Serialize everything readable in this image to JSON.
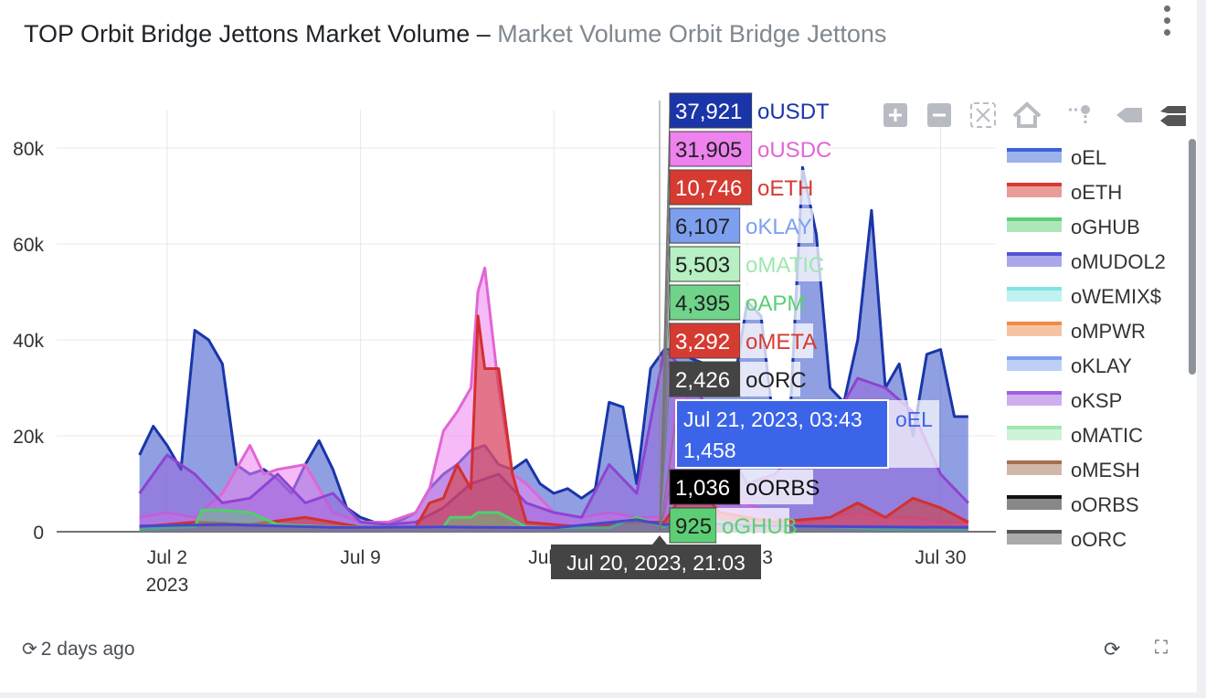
{
  "header": {
    "title_main": "TOP Orbit Bridge Jettons Market Volume",
    "title_sep": " – ",
    "title_sub": "Market Volume Orbit Bridge Jettons",
    "menu_icon": "kebab-vertical-icon"
  },
  "footer": {
    "refresh_icon": "refresh-icon",
    "updated": "2 days ago",
    "reload_icon": "reload-icon",
    "expand_icon": "expand-icon"
  },
  "modebar": [
    "zoom-in-icon",
    "zoom-out-icon",
    "autoscale-icon",
    "reset-axes-icon",
    "spike-lines-icon",
    "hover-closest-icon",
    "hover-compare-icon"
  ],
  "chart_data": {
    "type": "area",
    "y_ticks": [
      "0",
      "20k",
      "40k",
      "60k",
      "80k"
    ],
    "ylim": [
      0,
      88000
    ],
    "x_ticks": [
      {
        "date": "2023-07-02",
        "label": "Jul 2",
        "sublabel": "2023"
      },
      {
        "date": "2023-07-09",
        "label": "Jul 9",
        "sublabel": ""
      },
      {
        "date": "2023-07-16",
        "label": "Jul 16",
        "sublabel": ""
      },
      {
        "date": "2023-07-23",
        "label": "Jul 23",
        "sublabel": ""
      },
      {
        "date": "2023-07-30",
        "label": "Jul 30",
        "sublabel": ""
      }
    ],
    "xlim": [
      "2023-06-28",
      "2023-08-01"
    ],
    "grid": true,
    "legend_position": "right",
    "legend": [
      {
        "name": "oEL",
        "color": "#3b64d9"
      },
      {
        "name": "oETH",
        "color": "#d63b32"
      },
      {
        "name": "oGHUB",
        "color": "#5ccf74"
      },
      {
        "name": "oMUDOL2",
        "color": "#5552d6"
      },
      {
        "name": "oWEMIX$",
        "color": "#7fe6e3"
      },
      {
        "name": "oMPWR",
        "color": "#ee8a48"
      },
      {
        "name": "oKLAY",
        "color": "#7d9ff0"
      },
      {
        "name": "oKSP",
        "color": "#a05ee0"
      },
      {
        "name": "oMATIC",
        "color": "#9ee8b0"
      },
      {
        "name": "oMESH",
        "color": "#a4704f"
      },
      {
        "name": "oORBS",
        "color": "#111111"
      },
      {
        "name": "oORC",
        "color": "#555555"
      }
    ],
    "series": [
      {
        "name": "oUSDT",
        "color": "#1a35a8",
        "fill": "rgba(52,80,200,0.55)",
        "x": [
          "2023-07-01",
          "2023-07-01 12:00",
          "2023-07-02",
          "2023-07-02 12:00",
          "2023-07-03",
          "2023-07-03 12:00",
          "2023-07-04",
          "2023-07-04 12:00",
          "2023-07-05",
          "2023-07-05 12:00",
          "2023-07-06",
          "2023-07-06 12:00",
          "2023-07-07",
          "2023-07-07 12:00",
          "2023-07-08",
          "2023-07-08 12:00",
          "2023-07-09",
          "2023-07-09 12:00",
          "2023-07-10",
          "2023-07-10 12:00",
          "2023-07-11",
          "2023-07-11 12:00",
          "2023-07-12",
          "2023-07-12 12:00",
          "2023-07-13",
          "2023-07-13 12:00",
          "2023-07-14",
          "2023-07-14 12:00",
          "2023-07-15",
          "2023-07-15 12:00",
          "2023-07-16",
          "2023-07-16 12:00",
          "2023-07-17",
          "2023-07-17 12:00",
          "2023-07-18",
          "2023-07-18 12:00",
          "2023-07-19",
          "2023-07-19 12:00",
          "2023-07-20",
          "2023-07-20 12:00",
          "2023-07-21",
          "2023-07-21 12:00",
          "2023-07-22",
          "2023-07-22 12:00",
          "2023-07-23",
          "2023-07-23 12:00",
          "2023-07-24",
          "2023-07-24 12:00",
          "2023-07-25",
          "2023-07-25 12:00",
          "2023-07-26",
          "2023-07-26 12:00",
          "2023-07-27",
          "2023-07-27 12:00",
          "2023-07-28",
          "2023-07-28 12:00",
          "2023-07-29",
          "2023-07-29 12:00",
          "2023-07-30",
          "2023-07-30 12:00",
          "2023-07-31"
        ],
        "y": [
          16000,
          22000,
          18000,
          13000,
          42000,
          40000,
          35000,
          14000,
          12000,
          13000,
          11000,
          8000,
          14000,
          19000,
          13000,
          5000,
          3000,
          2000,
          1500,
          2500,
          4000,
          9000,
          12000,
          14000,
          17000,
          18000,
          14000,
          13000,
          15000,
          10000,
          8000,
          9000,
          7000,
          9000,
          27000,
          26000,
          10000,
          34000,
          38000,
          37921,
          36000,
          35000,
          33000,
          30000,
          48000,
          45000,
          20000,
          18000,
          76000,
          62000,
          30000,
          27000,
          40000,
          67000,
          30000,
          35000,
          20000,
          37000,
          38000,
          24000,
          24000
        ]
      },
      {
        "name": "oUSDC",
        "color": "#e066d6",
        "fill": "rgba(238,130,238,0.55)",
        "x": [
          "2023-07-01",
          "2023-07-02",
          "2023-07-03",
          "2023-07-04",
          "2023-07-05",
          "2023-07-05 12:00",
          "2023-07-06",
          "2023-07-07",
          "2023-07-08",
          "2023-07-09",
          "2023-07-10",
          "2023-07-11",
          "2023-07-11 12:00",
          "2023-07-12",
          "2023-07-12 12:00",
          "2023-07-13",
          "2023-07-13 06:00",
          "2023-07-13 12:00",
          "2023-07-14",
          "2023-07-14 12:00",
          "2023-07-15",
          "2023-07-16",
          "2023-07-17",
          "2023-07-18",
          "2023-07-19",
          "2023-07-20",
          "2023-07-20 12:00",
          "2023-07-21",
          "2023-07-22",
          "2023-07-23",
          "2023-07-24",
          "2023-07-25",
          "2023-07-26",
          "2023-07-27",
          "2023-07-28",
          "2023-07-29",
          "2023-07-30",
          "2023-07-31"
        ],
        "y": [
          3000,
          4000,
          3000,
          8000,
          18000,
          12000,
          13000,
          14000,
          4000,
          2000,
          2000,
          4000,
          9000,
          21000,
          25000,
          30000,
          50000,
          55000,
          30000,
          12000,
          10000,
          4000,
          3000,
          4000,
          3000,
          3000,
          31905,
          26000,
          14000,
          6000,
          3000,
          2000,
          3000,
          4000,
          3000,
          3000,
          2000,
          2000
        ]
      },
      {
        "name": "oKSP",
        "color": "#8e44d1",
        "fill": "rgba(150,90,220,0.45)",
        "x": [
          "2023-07-01",
          "2023-07-02",
          "2023-07-03",
          "2023-07-04",
          "2023-07-05",
          "2023-07-06",
          "2023-07-07",
          "2023-07-08",
          "2023-07-09",
          "2023-07-10",
          "2023-07-11",
          "2023-07-12",
          "2023-07-13",
          "2023-07-14",
          "2023-07-15",
          "2023-07-16",
          "2023-07-17",
          "2023-07-18",
          "2023-07-19",
          "2023-07-20",
          "2023-07-21",
          "2023-07-22",
          "2023-07-23",
          "2023-07-24",
          "2023-07-25",
          "2023-07-26",
          "2023-07-27",
          "2023-07-28",
          "2023-07-29",
          "2023-07-30",
          "2023-07-31"
        ],
        "y": [
          8000,
          16000,
          12000,
          6000,
          7000,
          12000,
          6000,
          8000,
          2000,
          1500,
          2000,
          5000,
          10000,
          12000,
          6000,
          4000,
          3000,
          14000,
          8000,
          38000,
          32000,
          20000,
          10000,
          12000,
          18000,
          22000,
          32000,
          30000,
          25000,
          12000,
          6000
        ]
      },
      {
        "name": "oETH",
        "color": "#d42f2f",
        "fill": "rgba(214,59,50,0.55)",
        "x": [
          "2023-07-01",
          "2023-07-03",
          "2023-07-05",
          "2023-07-07",
          "2023-07-09",
          "2023-07-11",
          "2023-07-11 12:00",
          "2023-07-12",
          "2023-07-12 12:00",
          "2023-07-13",
          "2023-07-13 06:00",
          "2023-07-13 12:00",
          "2023-07-14",
          "2023-07-14 12:00",
          "2023-07-15",
          "2023-07-17",
          "2023-07-19",
          "2023-07-20",
          "2023-07-21",
          "2023-07-22",
          "2023-07-24",
          "2023-07-26",
          "2023-07-27",
          "2023-07-28",
          "2023-07-29",
          "2023-07-30",
          "2023-07-31"
        ],
        "y": [
          1000,
          2000,
          1500,
          3000,
          1000,
          1000,
          6000,
          7000,
          14000,
          9000,
          45000,
          34000,
          34000,
          12000,
          2000,
          1000,
          2000,
          2000,
          10746,
          4000,
          2000,
          3000,
          6000,
          3000,
          7000,
          5000,
          2000
        ]
      },
      {
        "name": "oGHUB",
        "color": "#4fcf6a",
        "fill": "rgba(92,207,116,0.45)",
        "x": [
          "2023-07-01",
          "2023-07-02",
          "2023-07-03",
          "2023-07-03 06:00",
          "2023-07-04",
          "2023-07-05",
          "2023-07-06",
          "2023-07-08",
          "2023-07-10",
          "2023-07-12",
          "2023-07-12 06:00",
          "2023-07-13",
          "2023-07-13 06:00",
          "2023-07-14",
          "2023-07-15",
          "2023-07-16",
          "2023-07-18",
          "2023-07-19",
          "2023-07-20",
          "2023-07-21",
          "2023-07-22",
          "2023-07-24",
          "2023-07-26",
          "2023-07-28",
          "2023-07-30",
          "2023-07-31"
        ],
        "y": [
          500,
          800,
          1000,
          4500,
          4500,
          4000,
          1500,
          1000,
          1000,
          1000,
          3000,
          3000,
          4000,
          4000,
          1000,
          800,
          800,
          3000,
          925,
          3000,
          2000,
          1000,
          1000,
          500,
          500,
          500
        ]
      },
      {
        "name": "oMUDOL2",
        "color": "#4a47d0",
        "fill": "rgba(85,82,214,0.35)",
        "x": [
          "2023-07-01",
          "2023-07-04",
          "2023-07-08",
          "2023-07-12",
          "2023-07-16",
          "2023-07-19",
          "2023-07-20",
          "2023-07-21",
          "2023-07-24",
          "2023-07-28",
          "2023-07-31"
        ],
        "y": [
          1200,
          1500,
          900,
          1000,
          800,
          2500,
          1458,
          1800,
          1200,
          1000,
          900
        ]
      }
    ],
    "hover": {
      "x_label_top": "Jul 21, 2023, 03:43",
      "x_label_bottom": "Jul 20, 2023, 21:03",
      "items": [
        {
          "value": "37,921",
          "name": "oUSDT",
          "bg": "#1a35a8",
          "fg": "#ffffff",
          "name_color": "#1a35a8"
        },
        {
          "value": "31,905",
          "name": "oUSDC",
          "bg": "#ee82ee",
          "fg": "#222222",
          "name_color": "#e066d6"
        },
        {
          "value": "10,746",
          "name": "oETH",
          "bg": "#d63b32",
          "fg": "#ffffff",
          "name_color": "#d63b32"
        },
        {
          "value": "6,107",
          "name": "oKLAY",
          "bg": "#7d9ff0",
          "fg": "#222222",
          "name_color": "#7d9ff0"
        },
        {
          "value": "5,503",
          "name": "oMATIC",
          "bg": "#b6f0c3",
          "fg": "#222222",
          "name_color": "#9ee8b0"
        },
        {
          "value": "4,395",
          "name": "oAPM",
          "bg": "#6fd48a",
          "fg": "#222222",
          "name_color": "#5ccf74"
        },
        {
          "value": "3,292",
          "name": "oMETA",
          "bg": "#d63b32",
          "fg": "#ffffff",
          "name_color": "#d63b32"
        },
        {
          "value": "2,426",
          "name": "oORC",
          "bg": "#444444",
          "fg": "#ffffff",
          "name_color": "#222222"
        },
        {
          "value": "1,458",
          "name": "oEL",
          "bg": "#3b64e8",
          "fg": "#ffffff",
          "name_color": "#3b64e8"
        },
        {
          "value": "1,036",
          "name": "oORBS",
          "bg": "#000000",
          "fg": "#ffffff",
          "name_color": "#111111"
        },
        {
          "value": "925",
          "name": "oGHUB",
          "bg": "#5ccf74",
          "fg": "#222222",
          "name_color": "#5ccf74"
        }
      ]
    }
  }
}
